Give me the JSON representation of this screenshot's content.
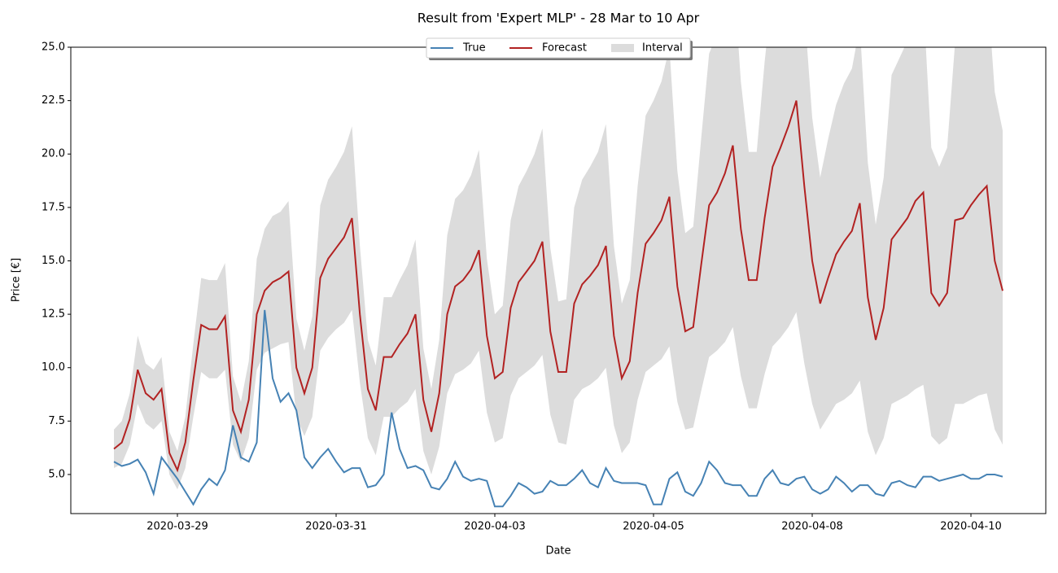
{
  "chart_data": {
    "type": "line",
    "title": "Result from 'Expert MLP' - 28 Mar to 10 Apr",
    "xlabel": "Date",
    "ylabel": "Price [€]",
    "x": [
      0,
      3,
      6,
      9,
      12,
      15,
      18,
      21,
      24,
      27,
      30,
      33,
      36,
      39,
      42,
      45,
      48,
      51,
      54,
      57,
      60,
      63,
      66,
      69,
      72,
      75,
      78,
      81,
      84,
      87,
      90,
      93,
      96,
      99,
      102,
      105,
      108,
      111,
      114,
      117,
      120,
      123,
      126,
      129,
      132,
      135,
      138,
      141,
      144,
      147,
      150,
      153,
      156,
      159,
      162,
      165,
      168,
      171,
      174,
      177,
      180,
      183,
      186,
      189,
      192,
      195,
      198,
      201,
      204,
      207,
      210,
      213,
      216,
      219,
      222,
      225,
      228,
      231,
      234,
      237,
      240,
      243,
      246,
      249,
      252,
      255,
      258,
      261,
      264,
      267,
      270,
      273,
      276,
      279,
      282,
      285,
      288,
      291,
      294,
      297,
      300,
      303,
      306,
      309,
      312,
      315,
      318,
      321,
      324,
      327,
      330,
      333,
      336
    ],
    "xlim": [
      -16.3,
      352.3
    ],
    "xticks": [
      {
        "value": 24,
        "label": "2020-03-29"
      },
      {
        "value": 84,
        "label": "2020-03-31"
      },
      {
        "value": 144,
        "label": "2020-04-03"
      },
      {
        "value": 204,
        "label": "2020-04-05"
      },
      {
        "value": 264,
        "label": "2020-04-08"
      },
      {
        "value": 324,
        "label": "2020-04-10"
      }
    ],
    "ylim": [
      3.17,
      25
    ],
    "yticks": [
      {
        "value": 5,
        "label": "5.0"
      },
      7.5,
      {
        "value": 10,
        "label": "10.0"
      },
      12.5,
      {
        "value": 15,
        "label": "15.0"
      },
      17.5,
      {
        "value": 20,
        "label": "20.0"
      },
      22.5,
      {
        "value": 25,
        "label": "25.0"
      }
    ],
    "legend": "upper center",
    "series": [
      {
        "name": "True",
        "color": "#4682b4",
        "values": [
          5.6,
          5.4,
          5.5,
          5.7,
          5.1,
          4.1,
          5.8,
          5.3,
          4.8,
          4.2,
          3.6,
          4.3,
          4.8,
          4.5,
          5.2,
          7.3,
          5.8,
          5.6,
          6.5,
          12.7,
          9.5,
          8.4,
          8.8,
          8.0,
          5.8,
          5.3,
          5.8,
          6.2,
          5.6,
          5.1,
          5.3,
          5.3,
          4.4,
          4.5,
          5.0,
          7.9,
          6.2,
          5.3,
          5.4,
          5.2,
          4.4,
          4.3,
          4.8,
          5.6,
          4.9,
          4.7,
          4.8,
          4.7,
          3.5,
          3.5,
          4.0,
          4.6,
          4.4,
          4.1,
          4.2,
          4.7,
          4.5,
          4.5,
          4.8,
          5.2,
          4.6,
          4.4,
          5.3,
          4.7,
          4.6,
          4.6,
          4.6,
          4.5,
          3.6,
          3.6,
          4.8,
          5.1,
          4.2,
          4.0,
          4.6,
          5.6,
          5.2,
          4.6,
          4.5,
          4.5,
          4.0,
          4.0,
          4.8,
          5.2,
          4.6,
          4.5,
          4.8,
          4.9,
          4.3,
          4.1,
          4.3,
          4.9,
          4.6,
          4.2,
          4.5,
          4.5,
          4.1,
          4.0,
          4.6,
          4.7,
          4.5,
          4.4,
          4.9,
          4.9,
          4.7,
          4.8,
          4.9,
          5.0,
          4.8,
          4.8,
          5.0,
          5.0,
          4.9
        ]
      },
      {
        "name": "Forecast",
        "color": "#b22222",
        "values": [
          6.2,
          6.5,
          7.6,
          9.9,
          8.8,
          8.5,
          9.0,
          6.0,
          5.2,
          6.5,
          9.4,
          12.0,
          11.8,
          11.8,
          12.4,
          8.0,
          7.0,
          8.5,
          12.5,
          13.6,
          14.0,
          14.2,
          14.5,
          10.0,
          8.8,
          10.0,
          14.2,
          15.1,
          15.6,
          16.1,
          17.0,
          12.5,
          9.0,
          8.0,
          10.5,
          10.5,
          11.1,
          11.6,
          12.5,
          8.5,
          7.0,
          8.8,
          12.5,
          13.8,
          14.1,
          14.6,
          15.5,
          11.5,
          9.5,
          9.8,
          12.8,
          14.0,
          14.5,
          15.0,
          15.9,
          11.7,
          9.8,
          9.8,
          13.0,
          13.9,
          14.3,
          14.8,
          15.7,
          11.5,
          9.5,
          10.3,
          13.5,
          15.8,
          16.3,
          16.9,
          18.0,
          13.8,
          11.7,
          11.9,
          14.8,
          17.6,
          18.2,
          19.1,
          20.4,
          16.5,
          14.1,
          14.1,
          17.0,
          19.4,
          20.3,
          21.3,
          22.5,
          18.5,
          15.0,
          13.0,
          14.2,
          15.3,
          15.9,
          16.4,
          17.7,
          13.3,
          11.3,
          12.8,
          16.0,
          16.5,
          17.0,
          17.8,
          18.2,
          13.5,
          12.9,
          13.5,
          16.9,
          17.0,
          17.6,
          18.1,
          18.5,
          15.0,
          13.6
        ]
      }
    ],
    "interval": {
      "name": "Interval",
      "color": "#dcdcdc",
      "lower": [
        5.3,
        5.5,
        6.4,
        8.3,
        7.4,
        7.1,
        7.5,
        5.0,
        4.3,
        5.3,
        7.7,
        9.8,
        9.5,
        9.5,
        9.9,
        6.4,
        5.6,
        6.7,
        9.9,
        10.7,
        10.9,
        11.1,
        11.2,
        7.7,
        6.8,
        7.7,
        10.8,
        11.4,
        11.8,
        12.1,
        12.7,
        9.3,
        6.7,
        5.9,
        7.7,
        7.7,
        8.1,
        8.4,
        9.0,
        6.1,
        5.0,
        6.3,
        8.8,
        9.7,
        9.9,
        10.2,
        10.8,
        7.9,
        6.5,
        6.7,
        8.7,
        9.5,
        9.8,
        10.1,
        10.6,
        7.8,
        6.5,
        6.4,
        8.5,
        9.0,
        9.2,
        9.5,
        10.0,
        7.3,
        6.0,
        6.5,
        8.5,
        9.8,
        10.1,
        10.4,
        11.0,
        8.4,
        7.1,
        7.2,
        8.9,
        10.5,
        10.8,
        11.2,
        11.9,
        9.6,
        8.1,
        8.1,
        9.7,
        11.0,
        11.4,
        11.9,
        12.6,
        10.2,
        8.3,
        7.1,
        7.7,
        8.3,
        8.5,
        8.8,
        9.4,
        7.0,
        5.9,
        6.7,
        8.3,
        8.5,
        8.7,
        9.0,
        9.2,
        6.8,
        6.4,
        6.7,
        8.3,
        8.3,
        8.5,
        8.7,
        8.8,
        7.1,
        6.4
      ],
      "upper": [
        7.1,
        7.5,
        8.8,
        11.5,
        10.2,
        9.9,
        10.5,
        7.0,
        6.1,
        7.7,
        11.1,
        14.2,
        14.1,
        14.1,
        14.9,
        9.6,
        8.4,
        10.3,
        15.1,
        16.5,
        17.1,
        17.3,
        17.8,
        12.3,
        10.8,
        12.4,
        17.6,
        18.8,
        19.4,
        20.1,
        21.3,
        15.7,
        11.3,
        10.1,
        13.3,
        13.3,
        14.1,
        14.8,
        16.0,
        10.9,
        9.0,
        11.3,
        16.2,
        17.9,
        18.3,
        19.0,
        20.2,
        15.1,
        12.5,
        12.9,
        16.9,
        18.5,
        19.2,
        20.0,
        21.2,
        15.6,
        13.1,
        13.2,
        17.5,
        18.8,
        19.4,
        20.1,
        21.4,
        15.7,
        13.0,
        14.1,
        18.5,
        21.8,
        22.5,
        23.4,
        25.0,
        19.2,
        16.3,
        16.6,
        20.7,
        24.7,
        25.6,
        27.0,
        28.9,
        23.4,
        20.1,
        20.1,
        24.3,
        27.8,
        29.2,
        30.6,
        32.4,
        26.8,
        21.7,
        18.9,
        20.7,
        22.3,
        23.3,
        24.0,
        26.0,
        19.6,
        16.7,
        18.9,
        23.7,
        24.5,
        25.3,
        26.6,
        27.2,
        20.3,
        19.4,
        20.3,
        25.2,
        25.7,
        26.7,
        27.5,
        28.2,
        22.9,
        21.1
      ]
    }
  }
}
